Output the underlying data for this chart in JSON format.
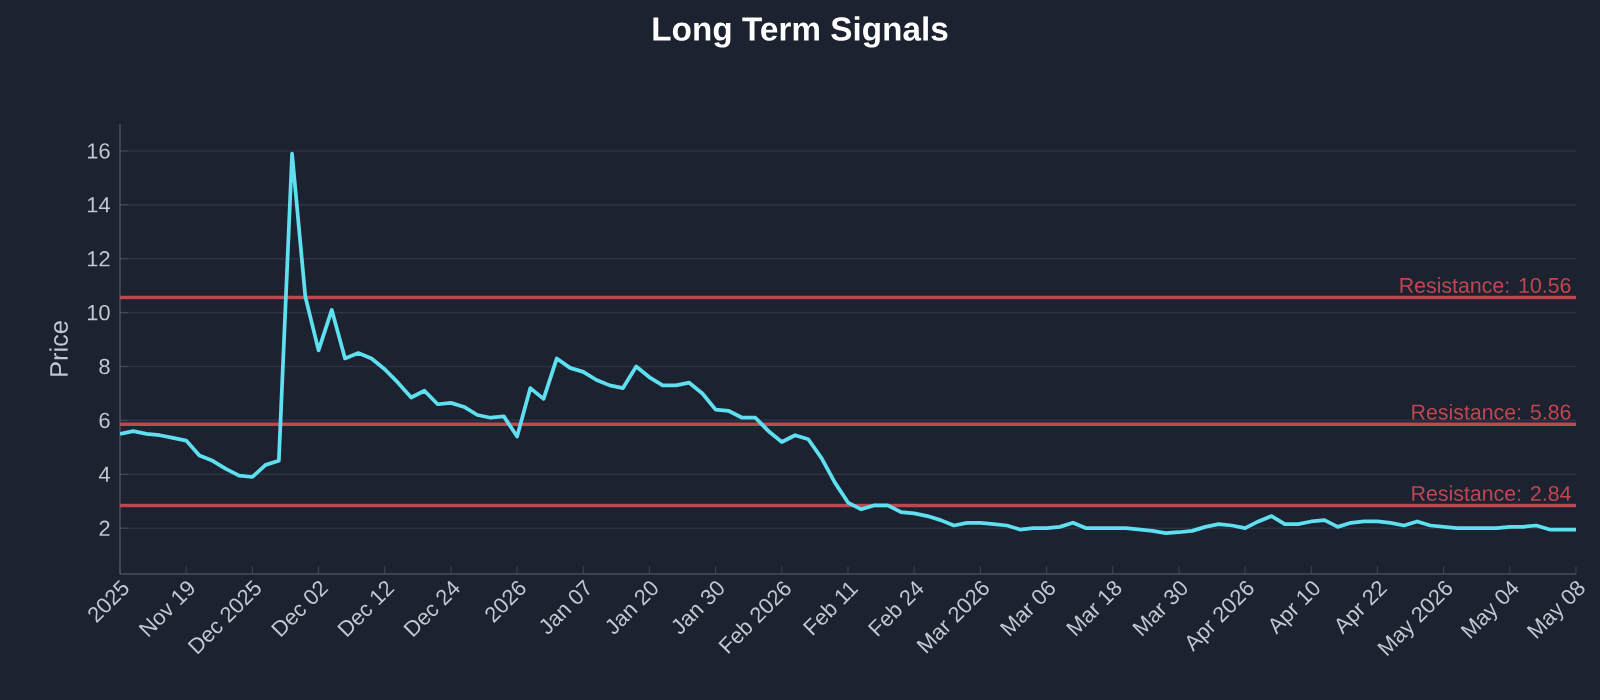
{
  "chart_data": {
    "type": "line",
    "title": "Long Term Signals",
    "ylabel": "Price",
    "categories": [
      "2025",
      null,
      null,
      null,
      null,
      "Nov 19",
      null,
      null,
      null,
      null,
      "Dec 2025",
      null,
      null,
      null,
      null,
      "Dec 02",
      null,
      null,
      null,
      null,
      "Dec 12",
      null,
      null,
      null,
      null,
      "Dec 24",
      null,
      null,
      null,
      null,
      "2026",
      null,
      null,
      null,
      null,
      "Jan 07",
      null,
      null,
      null,
      null,
      "Jan 20",
      null,
      null,
      null,
      null,
      "Jan 30",
      null,
      null,
      null,
      null,
      "Feb 2026",
      null,
      null,
      null,
      null,
      "Feb 11",
      null,
      null,
      null,
      null,
      "Feb 24",
      null,
      null,
      null,
      null,
      "Mar 2026",
      null,
      null,
      null,
      null,
      "Mar 06",
      null,
      null,
      null,
      null,
      "Mar 18",
      null,
      null,
      null,
      null,
      "Mar 30",
      null,
      null,
      null,
      null,
      "Apr 2026",
      null,
      null,
      null,
      null,
      "Apr 10",
      null,
      null,
      null,
      null,
      "Apr 22",
      null,
      null,
      null,
      null,
      "May 2026",
      null,
      null,
      null,
      null,
      "May 04",
      null,
      null,
      null,
      null,
      "May 08"
    ],
    "values": [
      5.5,
      5.6,
      5.5,
      5.45,
      5.35,
      5.25,
      4.7,
      4.5,
      4.2,
      3.95,
      3.9,
      4.35,
      4.5,
      15.9,
      10.6,
      8.6,
      10.1,
      8.3,
      8.5,
      8.3,
      7.9,
      7.4,
      6.85,
      7.1,
      6.6,
      6.65,
      6.5,
      6.2,
      6.1,
      6.15,
      5.4,
      7.2,
      6.8,
      8.3,
      7.95,
      7.8,
      7.5,
      7.3,
      7.2,
      8.0,
      7.6,
      7.3,
      7.3,
      7.4,
      7.0,
      6.4,
      6.35,
      6.1,
      6.1,
      5.6,
      5.2,
      5.45,
      5.3,
      4.6,
      3.7,
      2.95,
      2.7,
      2.85,
      2.85,
      2.6,
      2.55,
      2.45,
      2.3,
      2.1,
      2.2,
      2.2,
      2.15,
      2.1,
      1.95,
      2.0,
      2.0,
      2.05,
      2.2,
      2.0,
      2.0,
      2.0,
      2.0,
      1.95,
      1.9,
      1.82,
      1.85,
      1.9,
      2.05,
      2.15,
      2.1,
      2.0,
      2.25,
      2.45,
      2.15,
      2.15,
      2.25,
      2.3,
      2.05,
      2.2,
      2.25,
      2.25,
      2.2,
      2.1,
      2.25,
      2.1,
      2.05,
      2.0,
      2.0,
      2.0,
      2.0,
      2.05,
      2.05,
      2.1,
      1.95,
      1.95,
      1.95
    ],
    "color": "#5ee0f0",
    "ylim": [
      0.3,
      17
    ],
    "yticks": [
      2,
      4,
      6,
      8,
      10,
      12,
      14,
      16
    ],
    "grid": "y",
    "ref_lines": [
      {
        "axis": "y",
        "value": 10.56,
        "label": "Resistance: 10.56",
        "color": "#c0474f"
      },
      {
        "axis": "y",
        "value": 5.86,
        "label": "Resistance: 5.86",
        "color": "#c0474f"
      },
      {
        "axis": "y",
        "value": 2.84,
        "label": "Resistance: 2.84",
        "color": "#c0474f"
      }
    ]
  }
}
